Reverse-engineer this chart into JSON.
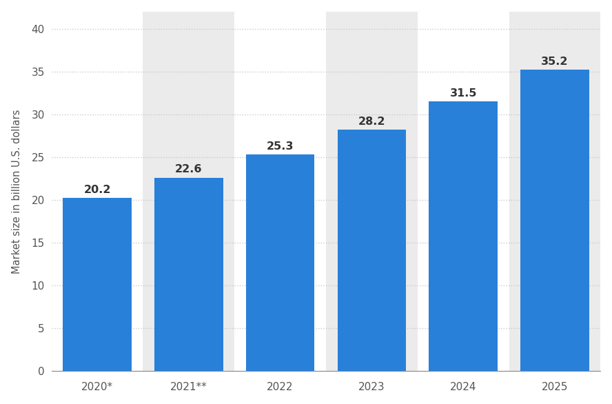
{
  "categories": [
    "2020*",
    "2021**",
    "2022",
    "2023",
    "2024",
    "2025"
  ],
  "values": [
    20.2,
    22.6,
    25.3,
    28.2,
    31.5,
    35.2
  ],
  "bar_color": "#2980d9",
  "ylabel": "Market size in billion U.S. dollars",
  "ylim": [
    0,
    42
  ],
  "yticks": [
    0,
    5,
    10,
    15,
    20,
    25,
    30,
    35,
    40
  ],
  "background_color": "#ffffff",
  "shade_color": "#ebebeb",
  "shaded_indices": [
    1,
    3,
    5
  ],
  "grid_color": "#c8c8c8",
  "label_fontsize": 10.5,
  "tick_fontsize": 11,
  "annotation_fontsize": 11.5,
  "bar_width": 0.75
}
